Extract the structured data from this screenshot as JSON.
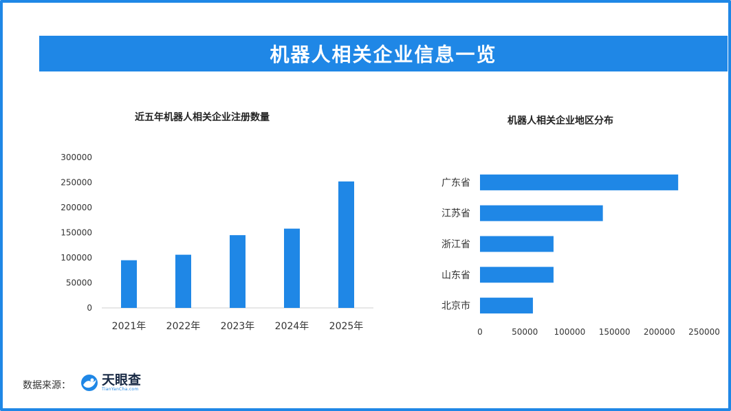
{
  "header": {
    "title": "机器人相关企业信息一览"
  },
  "colors": {
    "accent": "#1f87e6",
    "bar": "#1f87e6"
  },
  "footer": {
    "source_label": "数据来源：",
    "logo_name": "天眼查",
    "logo_url": "TianYanCha.com",
    "logo_icon": "tianyancha-logo-icon"
  },
  "chart_data": [
    {
      "type": "bar",
      "title": "近五年机器人相关企业注册数量",
      "categories": [
        "2021年",
        "2022年",
        "2023年",
        "2024年",
        "2025年"
      ],
      "values": [
        95000,
        106000,
        145000,
        158000,
        252000
      ],
      "ylim": [
        0,
        300000
      ],
      "yticks": [
        "0",
        "50000",
        "100000",
        "150000",
        "200000",
        "250000",
        "300000"
      ],
      "grid": false,
      "orientation": "vertical"
    },
    {
      "type": "bar",
      "title": "机器人相关企业地区分布",
      "categories": [
        "广东省",
        "江苏省",
        "浙江省",
        "山东省",
        "北京市"
      ],
      "values": [
        221000,
        137000,
        82000,
        82000,
        59000
      ],
      "xlim": [
        0,
        250000
      ],
      "xticks": [
        "0",
        "50000",
        "100000",
        "150000",
        "200000",
        "250000"
      ],
      "grid": false,
      "orientation": "horizontal"
    }
  ]
}
